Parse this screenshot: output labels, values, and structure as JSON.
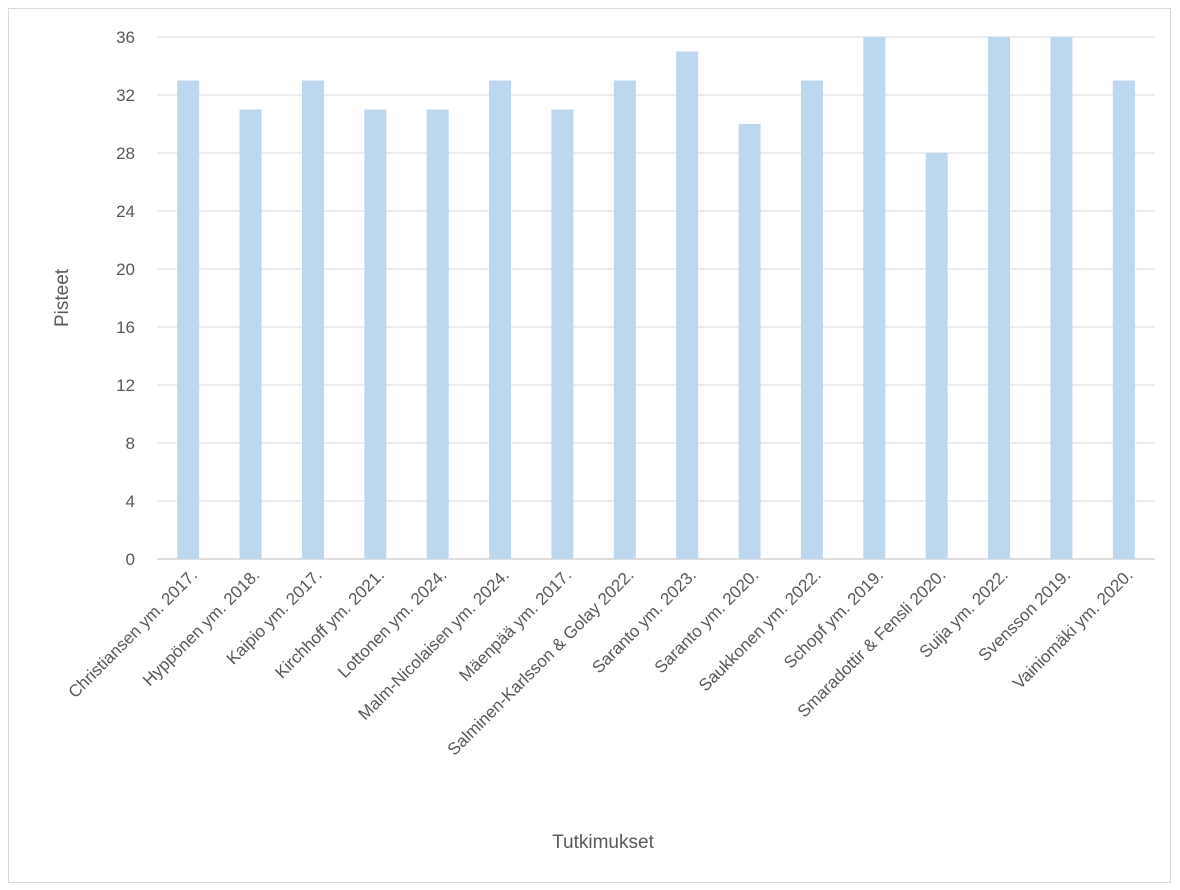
{
  "chart_data": {
    "type": "bar",
    "title": "",
    "xlabel": "Tutkimukset",
    "ylabel": "Pisteet",
    "ylim": [
      0,
      36
    ],
    "yticks": [
      0,
      4,
      8,
      12,
      16,
      20,
      24,
      28,
      32,
      36
    ],
    "grid": true,
    "legend": "none",
    "bar_color": "#bdd7ee",
    "categories": [
      "Christiansen ym. 2017.",
      "Hyppönen ym. 2018.",
      "Kaipio ym. 2017.",
      "Kirchhoff ym. 2021.",
      "Lottonen ym. 2024.",
      "Malm-Nicolaisen ym. 2024.",
      "Mäenpää ym. 2017.",
      "Salminen-Karlsson & Golay 2022.",
      "Saranto ym. 2023.",
      "Saranto ym. 2020.",
      "Saukkonen ym. 2022.",
      "Schopf ym. 2019.",
      "Smaradottir & Fensli 2020.",
      "Suija ym. 2022.",
      "Svensson 2019.",
      "Vainiomäki ym. 2020."
    ],
    "values": [
      33,
      31,
      33,
      31,
      31,
      33,
      31,
      33,
      35,
      30,
      33,
      36,
      28,
      36,
      36,
      33
    ]
  }
}
